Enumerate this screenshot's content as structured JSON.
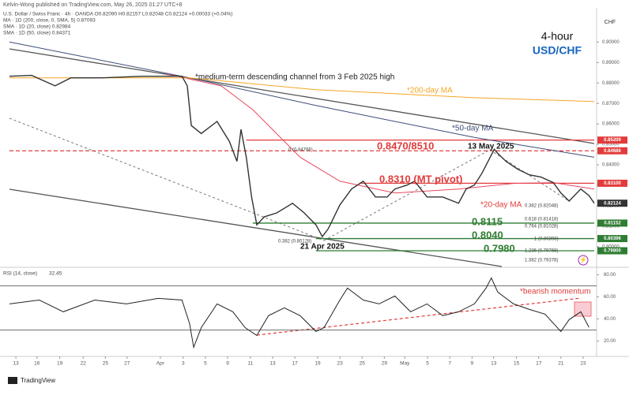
{
  "chart_data": {
    "type": "line",
    "credit": "Kelvin-Wong published on TradingView.com, May 26, 2025 01:27 UTC+8",
    "header": [
      "U.S. Dollar / Swiss Franc · 4h · OANDA  O0.82090 H0.82157 L0.82048 C0.82124 +0.00033 (+0.04%)",
      "MA · 1D (200, close, 0, SMA, 5)  0.87093",
      "SMA · 1D (20, close)  0.82984",
      "SMA · 1D (50, close)  0.84371"
    ],
    "title": "4-hour",
    "subtitle": "USD/CHF",
    "axis_label": "CHF",
    "footer": "TradingView",
    "xlim": [
      0,
      100
    ],
    "xticks": [
      {
        "value": 1.1,
        "label": "13"
      },
      {
        "value": 4.7,
        "label": "16"
      },
      {
        "value": 8.6,
        "label": "19"
      },
      {
        "value": 12.6,
        "label": "22"
      },
      {
        "value": 16.4,
        "label": "25"
      },
      {
        "value": 20.1,
        "label": "27"
      },
      {
        "value": 25.8,
        "label": "Apr"
      },
      {
        "value": 29.7,
        "label": "3"
      },
      {
        "value": 33.5,
        "label": "5"
      },
      {
        "value": 37.3,
        "label": "9"
      },
      {
        "value": 41.2,
        "label": "11"
      },
      {
        "value": 45,
        "label": "13"
      },
      {
        "value": 48.8,
        "label": "17"
      },
      {
        "value": 52.7,
        "label": "19"
      },
      {
        "value": 56.5,
        "label": "23"
      },
      {
        "value": 60.3,
        "label": "25"
      },
      {
        "value": 64.1,
        "label": "29"
      },
      {
        "value": 67.6,
        "label": "May"
      },
      {
        "value": 71.5,
        "label": "5"
      },
      {
        "value": 75.3,
        "label": "7"
      },
      {
        "value": 79.1,
        "label": "9"
      },
      {
        "value": 82.8,
        "label": "13"
      },
      {
        "value": 86.7,
        "label": "15"
      },
      {
        "value": 90.5,
        "label": "17"
      },
      {
        "value": 94.3,
        "label": "21"
      },
      {
        "value": 98.1,
        "label": "23"
      }
    ],
    "ylim": [
      0.7903,
      0.9167
    ],
    "yticks": [
      {
        "value": 0.9,
        "label": "0.90000"
      },
      {
        "value": 0.89,
        "label": "0.89000"
      },
      {
        "value": 0.88,
        "label": "0.88000"
      },
      {
        "value": 0.87,
        "label": "0.87000"
      },
      {
        "value": 0.86,
        "label": "0.86000"
      },
      {
        "value": 0.85,
        "label": "0.85000"
      },
      {
        "value": 0.84,
        "label": "0.84000"
      },
      {
        "value": 0.83,
        "label": "0.83000"
      },
      {
        "value": 0.82,
        "label": "0.82000"
      },
      {
        "value": 0.81,
        "label": "0.81000"
      },
      {
        "value": 0.8,
        "label": "0.80000"
      }
    ],
    "series": [
      {
        "name": "USD/CHF",
        "color": "#333333",
        "x": [
          0,
          3.8,
          7.8,
          10.5,
          15.9,
          22.7,
          26.8,
          29.5,
          30.4,
          31.1,
          32.8,
          35.5,
          37.6,
          38.9,
          39.6,
          40.5,
          41.4,
          42.3,
          43.6,
          45.7,
          48.4,
          50.4,
          52.4,
          53.5,
          54.5,
          56.5,
          58.5,
          60.5,
          62.6,
          64.6,
          65.9,
          68,
          69.3,
          71.4,
          74.1,
          76.8,
          78.1,
          79.5,
          80.8,
          82.2,
          82.9,
          83.5,
          84.9,
          86.9,
          88.9,
          90.9,
          93,
          94.3,
          95.7,
          97.7,
          99.1,
          100
        ],
        "values": [
          0.8833,
          0.8837,
          0.8786,
          0.8825,
          0.8825,
          0.8833,
          0.8833,
          0.8833,
          0.8786,
          0.8592,
          0.8553,
          0.8612,
          0.8515,
          0.8417,
          0.8573,
          0.8437,
          0.8243,
          0.8107,
          0.8146,
          0.8165,
          0.8212,
          0.8165,
          0.8107,
          0.8049,
          0.8087,
          0.8204,
          0.8282,
          0.832,
          0.8243,
          0.8243,
          0.8282,
          0.8301,
          0.832,
          0.8243,
          0.8243,
          0.8212,
          0.8282,
          0.8301,
          0.8359,
          0.8437,
          0.8476,
          0.8456,
          0.8417,
          0.8379,
          0.8351,
          0.834,
          0.8313,
          0.8262,
          0.8223,
          0.8282,
          0.825,
          0.82124
        ]
      },
      {
        "name": "200-day MA",
        "color": "#f5a623",
        "x": [
          0,
          30.8,
          52.4,
          79.5,
          100
        ],
        "values": [
          0.8825,
          0.8825,
          0.8767,
          0.8728,
          0.8709
        ]
      },
      {
        "name": "50-day MA",
        "color": "#3d4d7a",
        "x": [
          0,
          30.8,
          52.4,
          79.5,
          100
        ],
        "values": [
          0.9,
          0.8825,
          0.869,
          0.8534,
          0.8437
        ]
      },
      {
        "name": "20-day MA",
        "color": "#e8485f",
        "x": [
          26.8,
          36.2,
          41.6,
          49.7,
          56.5,
          65.9,
          76.8,
          86.2,
          93,
          100
        ],
        "values": [
          0.8845,
          0.8786,
          0.867,
          0.8437,
          0.832,
          0.8262,
          0.8282,
          0.8309,
          0.8313,
          0.8282
        ]
      }
    ],
    "levels": [
      {
        "value": 0.85209,
        "x0": 40.5,
        "color": "#e23b3b",
        "dashed": false
      },
      {
        "value": 0.84686,
        "x0": 0,
        "color": "#e23b3b",
        "dashed": true
      },
      {
        "value": 0.831,
        "x0": 59.9,
        "color": "#e23b3b",
        "dashed": false
      },
      {
        "value": 0.81152,
        "x0": 41.6,
        "color": "#2e7d32",
        "dashed": false
      },
      {
        "value": 0.80396,
        "x0": 52.4,
        "color": "#2e7d32",
        "dashed": false
      },
      {
        "value": 0.798,
        "x0": 52.4,
        "color": "#2e7d32",
        "dashed": false
      }
    ],
    "price_tags": [
      {
        "value": 0.85209,
        "label": "0.85209",
        "color": "#e23b3b"
      },
      {
        "value": 0.84686,
        "label": "0.84686",
        "color": "#e23b3b"
      },
      {
        "value": 0.831,
        "label": "0.83100",
        "color": "#e23b3b"
      },
      {
        "value": 0.82124,
        "label": "0.82124",
        "color": "#333333"
      },
      {
        "value": 0.81152,
        "label": "0.81152",
        "color": "#2e7d32"
      },
      {
        "value": 0.80396,
        "label": "0.80396",
        "color": "#2e7d32"
      },
      {
        "value": 0.798,
        "label": "0.79800",
        "color": "#2e7d32"
      }
    ],
    "annotations": [
      "*medium-term descending channel from 3 Feb 2025 high",
      "*200-day MA",
      "*50-day MA",
      "0.8470/8510",
      "13 May 2025",
      "0.8310 (MT pivot)",
      "*20-day MA",
      "0.8115",
      "0.8040",
      "0.7980",
      "21 Apr 2025",
      "*bearish momentum"
    ],
    "fib_labels": [
      "0 (0.84766)",
      "0.382 (0.82048)",
      "0.618 (0.81418)",
      "0.764 (0.81028)",
      "1 (0.80398)",
      "1.236 (0.79768)",
      "1.382 (0.79378)",
      "0.382 (0.80128)"
    ],
    "rsi": {
      "label": "RSI (14, close)",
      "value_label": "32.45",
      "color": "#222222",
      "ylim": [
        6,
        86
      ],
      "yticks": [
        {
          "value": 80,
          "label": "80.00"
        },
        {
          "value": 60,
          "label": "60.00"
        },
        {
          "value": 40,
          "label": "40.00"
        },
        {
          "value": 20,
          "label": "20.00"
        }
      ],
      "bands": [
        70,
        30
      ],
      "x": [
        0,
        5.1,
        9.2,
        14.6,
        20,
        25.4,
        29.5,
        30.8,
        31.5,
        32.8,
        35.5,
        38.2,
        40.3,
        42.3,
        44.3,
        47,
        49.7,
        52.4,
        53.8,
        56.5,
        57.8,
        60.5,
        63.2,
        65.9,
        68.6,
        71.4,
        74.1,
        76.8,
        79.5,
        81.5,
        82.4,
        83.5,
        86.2,
        88.9,
        91.6,
        94.3,
        95.7,
        97.7,
        99.1
      ],
      "values": [
        53.6,
        57.1,
        46.4,
        57.1,
        53.6,
        58.6,
        57.1,
        35.7,
        14.3,
        32.1,
        53.6,
        46.4,
        32.1,
        25,
        42.9,
        50,
        42.9,
        28.6,
        32.1,
        57.1,
        67.9,
        57.1,
        53.6,
        60.7,
        46.4,
        53.6,
        42.9,
        46.4,
        53.6,
        67.9,
        77.1,
        64.3,
        53.6,
        48.6,
        44.3,
        28.6,
        39.3,
        46.4,
        32.45
      ]
    }
  }
}
